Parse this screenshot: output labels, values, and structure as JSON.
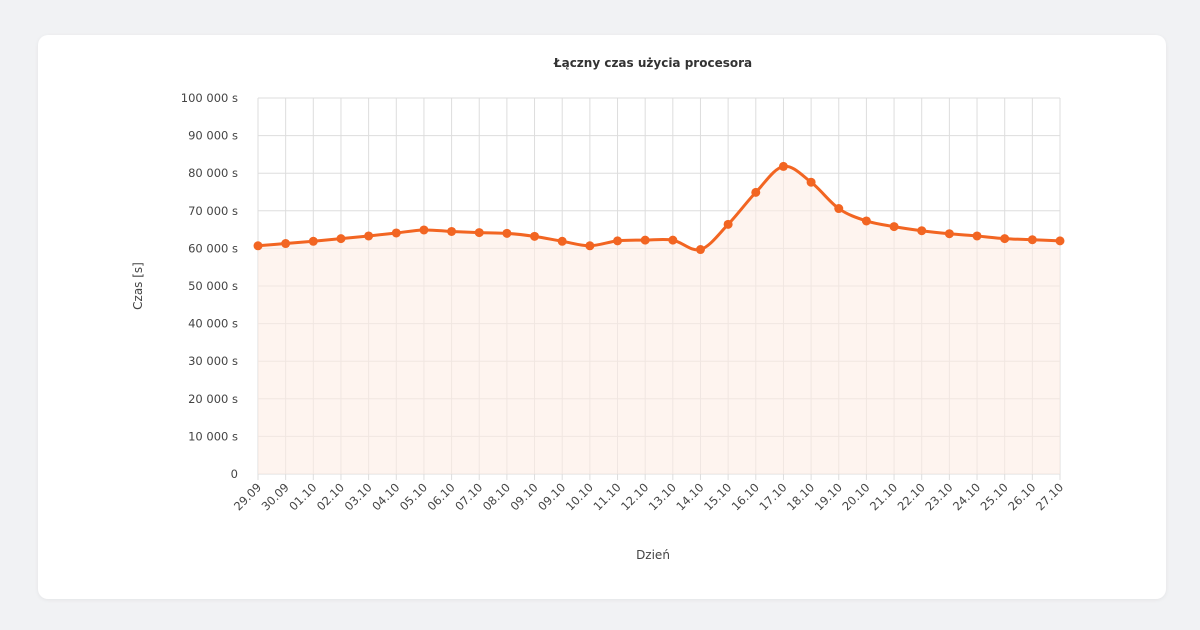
{
  "chart_data": {
    "type": "area",
    "title": "Łączny czas użycia procesora",
    "xlabel": "Dzień",
    "ylabel": "Czas [s]",
    "ylim": [
      0,
      100000
    ],
    "yticks": [
      0,
      10000,
      20000,
      30000,
      40000,
      50000,
      60000,
      70000,
      80000,
      90000,
      100000
    ],
    "ytick_labels": [
      "0",
      "10 000 s",
      "20 000 s",
      "30 000 s",
      "40 000 s",
      "50 000 s",
      "60 000 s",
      "70 000 s",
      "80 000 s",
      "90 000 s",
      "100 000 s"
    ],
    "categories": [
      "29.09",
      "30.09",
      "01.10",
      "02.10",
      "03.10",
      "04.10",
      "05.10",
      "06.10",
      "07.10",
      "08.10",
      "09.10",
      "09.10",
      "10.10",
      "11.10",
      "12.10",
      "13.10",
      "14.10",
      "15.10",
      "16.10",
      "17.10",
      "18.10",
      "19.10",
      "20.10",
      "21.10",
      "22.10",
      "23.10",
      "24.10",
      "25.10",
      "26.10",
      "27.10"
    ],
    "series": [
      {
        "values": [
          60700,
          61300,
          61900,
          62600,
          63300,
          64100,
          64900,
          64500,
          64200,
          64000,
          63200,
          61900,
          60700,
          62000,
          62200,
          62200,
          59700,
          66400,
          74900,
          81800,
          77600,
          70600,
          67300,
          65800,
          64700,
          63900,
          63300,
          62600,
          62300,
          62000
        ]
      }
    ],
    "grid": true,
    "legend": "none",
    "line_color": "#f26522",
    "fill_color": "#fdece4"
  }
}
